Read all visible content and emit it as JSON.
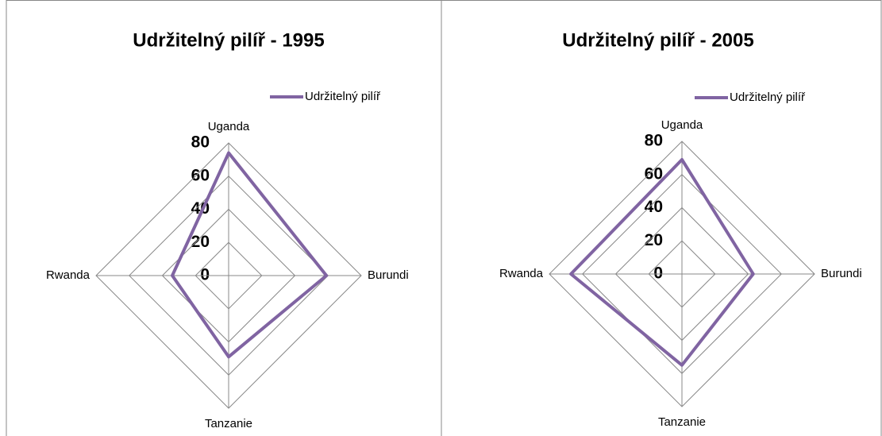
{
  "chart_data": [
    {
      "type": "radar",
      "title": "Udržitelný pilíř - 1995",
      "categories": [
        "Uganda",
        "Burundi",
        "Tanzanie",
        "Rwanda"
      ],
      "series": [
        {
          "name": "Udržitelný pilíř",
          "color": "#8064a2",
          "values": [
            74,
            59,
            49,
            34
          ]
        }
      ],
      "ylim": [
        0,
        80
      ],
      "yticks": [
        0,
        20,
        40,
        60,
        80
      ],
      "grid": true,
      "legend": "top-right"
    },
    {
      "type": "radar",
      "title": "Udržitelný pilíř - 2005",
      "categories": [
        "Uganda",
        "Burundi",
        "Tanzanie",
        "Rwanda"
      ],
      "series": [
        {
          "name": "Udržitelný pilíř",
          "color": "#8064a2",
          "values": [
            69,
            43,
            55,
            67
          ]
        }
      ],
      "ylim": [
        0,
        80
      ],
      "yticks": [
        0,
        20,
        40,
        60,
        80
      ],
      "grid": true,
      "legend": "top-right"
    }
  ]
}
